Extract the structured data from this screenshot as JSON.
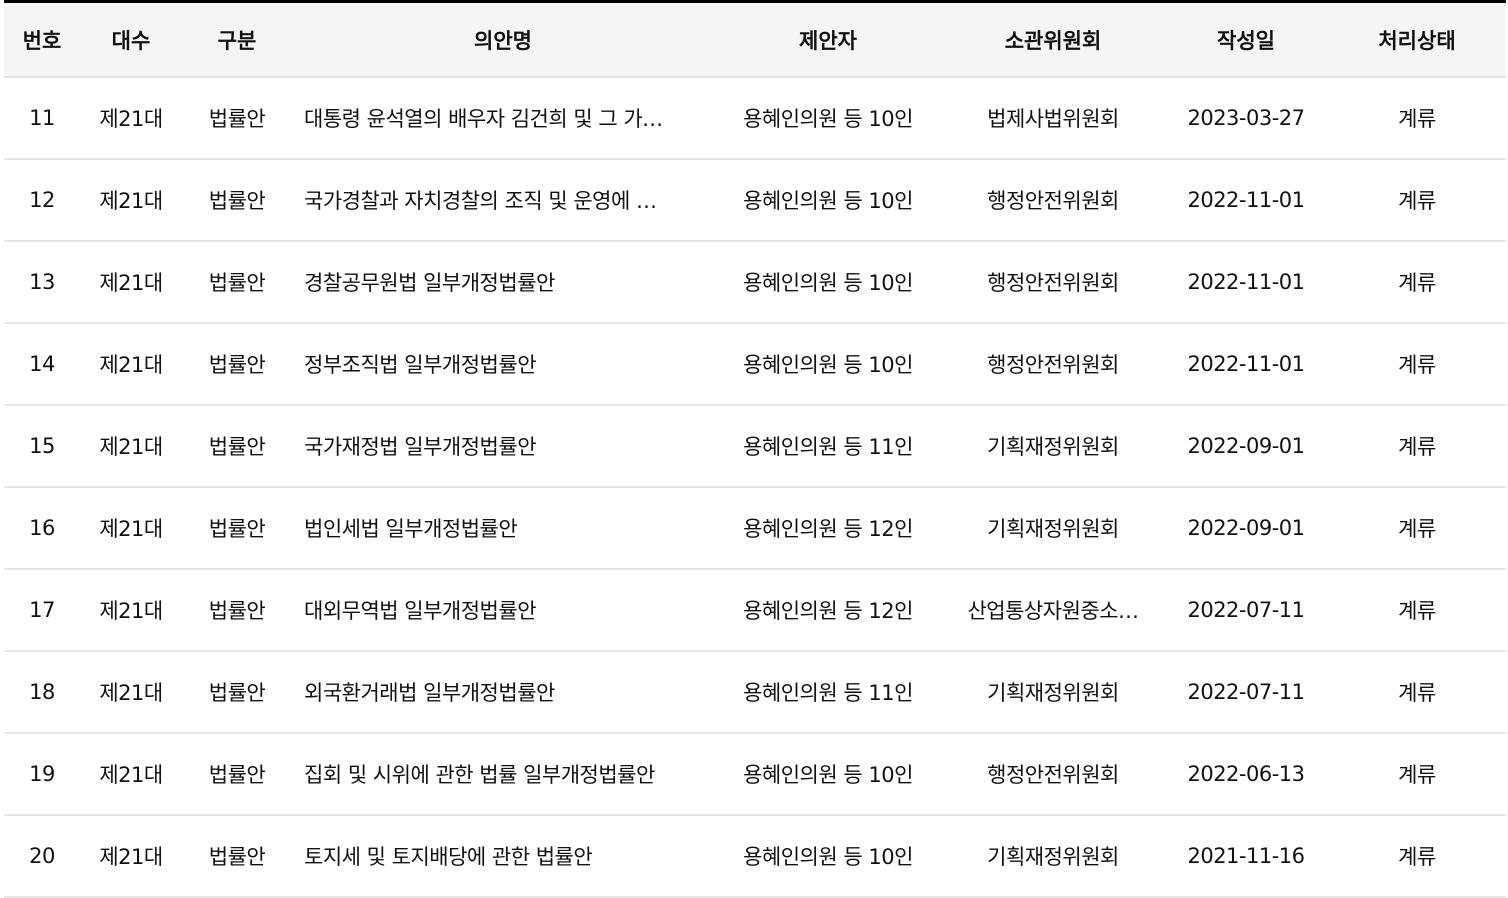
{
  "headers": [
    "번호",
    "대수",
    "구분",
    "의안명",
    "제안자",
    "소관위원회",
    "작성일",
    "처리상태"
  ],
  "rows": [
    {
      "no": "11",
      "session": "제21대",
      "type": "법률안",
      "title": "대통령 윤석열의 배우자 김건희 및 그 가…",
      "proposer": "용혜인의원 등 10인",
      "committee": "법제사법위원회",
      "date": "2023-03-27",
      "status": "계류"
    },
    {
      "no": "12",
      "session": "제21대",
      "type": "법률안",
      "title": "국가경찰과 자치경찰의 조직 및 운영에 …",
      "proposer": "용혜인의원 등 10인",
      "committee": "행정안전위원회",
      "date": "2022-11-01",
      "status": "계류"
    },
    {
      "no": "13",
      "session": "제21대",
      "type": "법률안",
      "title": "경찰공무원법 일부개정법률안",
      "proposer": "용혜인의원 등 10인",
      "committee": "행정안전위원회",
      "date": "2022-11-01",
      "status": "계류"
    },
    {
      "no": "14",
      "session": "제21대",
      "type": "법률안",
      "title": "정부조직법 일부개정법률안",
      "proposer": "용혜인의원 등 10인",
      "committee": "행정안전위원회",
      "date": "2022-11-01",
      "status": "계류"
    },
    {
      "no": "15",
      "session": "제21대",
      "type": "법률안",
      "title": "국가재정법 일부개정법률안",
      "proposer": "용혜인의원 등 11인",
      "committee": "기획재정위원회",
      "date": "2022-09-01",
      "status": "계류"
    },
    {
      "no": "16",
      "session": "제21대",
      "type": "법률안",
      "title": "법인세법 일부개정법률안",
      "proposer": "용혜인의원 등 12인",
      "committee": "기획재정위원회",
      "date": "2022-09-01",
      "status": "계류"
    },
    {
      "no": "17",
      "session": "제21대",
      "type": "법률안",
      "title": "대외무역법 일부개정법률안",
      "proposer": "용혜인의원 등 12인",
      "committee": "산업통상자원중소…",
      "date": "2022-07-11",
      "status": "계류"
    },
    {
      "no": "18",
      "session": "제21대",
      "type": "법률안",
      "title": "외국환거래법 일부개정법률안",
      "proposer": "용혜인의원 등 11인",
      "committee": "기획재정위원회",
      "date": "2022-07-11",
      "status": "계류"
    },
    {
      "no": "19",
      "session": "제21대",
      "type": "법률안",
      "title": "집회 및 시위에 관한 법률 일부개정법률안",
      "proposer": "용혜인의원 등 10인",
      "committee": "행정안전위원회",
      "date": "2022-06-13",
      "status": "계류"
    },
    {
      "no": "20",
      "session": "제21대",
      "type": "법률안",
      "title": "토지세 및 토지배당에 관한 법률안",
      "proposer": "용혜인의원 등 10인",
      "committee": "기획재정위원회",
      "date": "2021-11-16",
      "status": "계류"
    }
  ]
}
